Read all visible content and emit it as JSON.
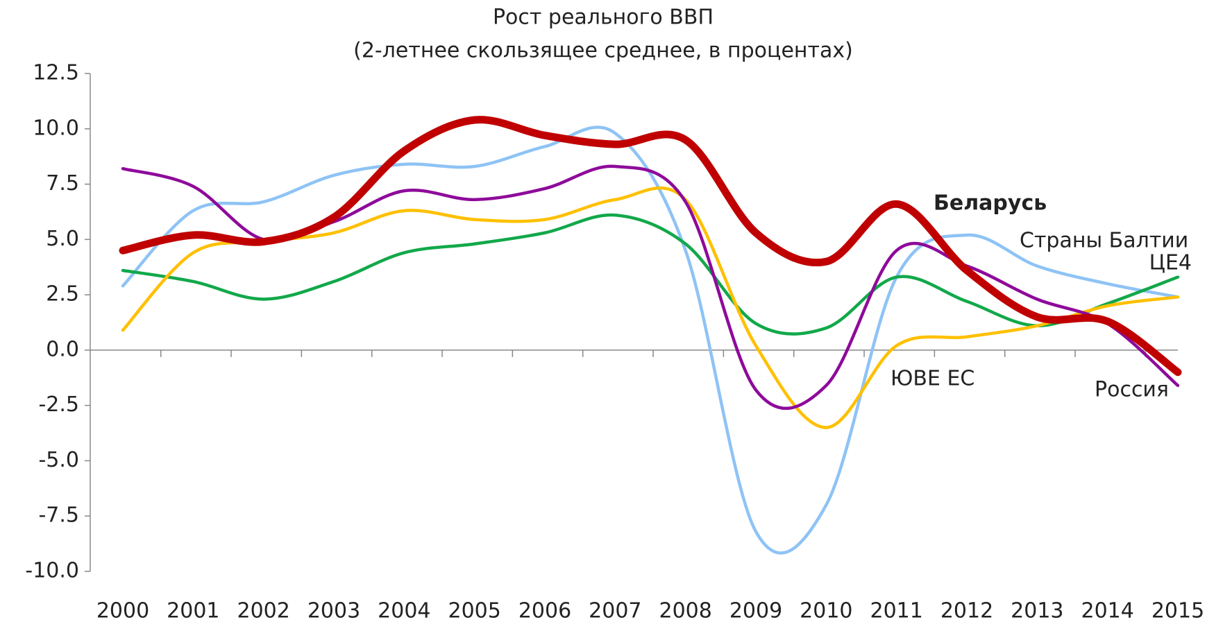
{
  "chart_data": {
    "type": "line",
    "title": "Рост реального ВВП",
    "subtitle": "(2-летнее скользящее среднее, в процентах)",
    "categories": [
      "2000",
      "2001",
      "2002",
      "2003",
      "2004",
      "2005",
      "2006",
      "2007",
      "2008",
      "2009",
      "2010",
      "2011",
      "2012",
      "2013",
      "2014",
      "2015"
    ],
    "series": [
      {
        "name": "Страны Балтии",
        "color": "#8ec3f5",
        "values": [
          2.9,
          6.3,
          6.7,
          7.9,
          8.4,
          8.3,
          9.2,
          9.8,
          4.5,
          -8.2,
          -7.0,
          3.3,
          5.2,
          3.8,
          3.0,
          2.4
        ]
      },
      {
        "name": "ЦЕ4",
        "color": "#12a84a",
        "values": [
          3.6,
          3.1,
          2.3,
          3.1,
          4.4,
          4.8,
          5.3,
          6.1,
          4.8,
          1.2,
          1.0,
          3.3,
          2.2,
          1.1,
          2.1,
          3.3
        ]
      },
      {
        "name": "ЮВЕ ЕС",
        "color": "#ffc000",
        "values": [
          0.9,
          4.4,
          4.9,
          5.3,
          6.3,
          5.9,
          5.9,
          6.8,
          6.8,
          0.2,
          -3.5,
          0.2,
          0.6,
          1.1,
          2.0,
          2.4
        ]
      },
      {
        "name": "Россия",
        "color": "#8e0a9a",
        "values": [
          8.2,
          7.4,
          5.0,
          5.8,
          7.2,
          6.8,
          7.3,
          8.3,
          6.7,
          -1.8,
          -1.6,
          4.5,
          3.8,
          2.3,
          1.2,
          -1.6
        ]
      },
      {
        "name": "Беларусь",
        "color": "#c00000",
        "values": [
          4.5,
          5.2,
          4.9,
          6.0,
          9.0,
          10.4,
          9.7,
          9.3,
          9.5,
          5.3,
          4.0,
          6.6,
          3.6,
          1.5,
          1.3,
          -1.0
        ]
      }
    ],
    "ylim": [
      -10,
      12.5
    ],
    "yticks": [
      {
        "value": -10,
        "label": "-10.0"
      },
      -7.5,
      {
        "value": -5,
        "label": "-5.0"
      },
      -2.5,
      {
        "value": 0,
        "label": "0.0"
      },
      2.5,
      {
        "value": 5,
        "label": "5.0"
      },
      7.5,
      {
        "value": 10,
        "label": "10.0"
      },
      12.5
    ]
  }
}
